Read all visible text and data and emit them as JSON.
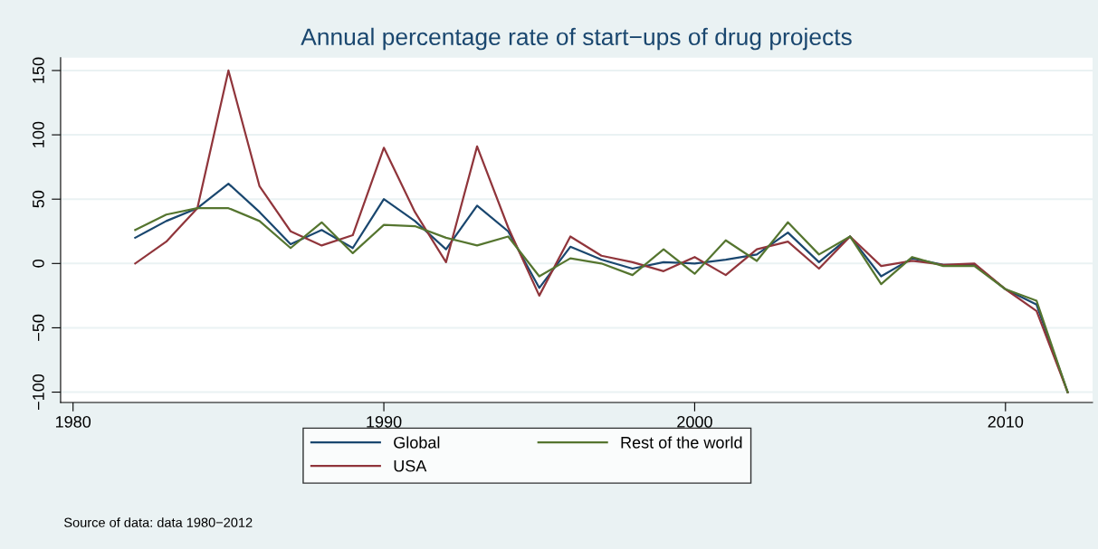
{
  "chart_data": {
    "type": "line",
    "title": "Annual percentage rate of start−ups of drug projects",
    "x": [
      1982,
      1983,
      1984,
      1985,
      1986,
      1987,
      1988,
      1989,
      1990,
      1991,
      1992,
      1993,
      1994,
      1995,
      1996,
      1997,
      1998,
      1999,
      2000,
      2001,
      2002,
      2003,
      2004,
      2005,
      2006,
      2007,
      2008,
      2009,
      2010,
      2011,
      2012
    ],
    "series": [
      {
        "name": "Global",
        "color": "#1a476f",
        "values": [
          20,
          33,
          43,
          62,
          40,
          15,
          26,
          12,
          50,
          33,
          11,
          45,
          25,
          -19,
          13,
          3,
          -4,
          1,
          0,
          3,
          7,
          24,
          1,
          21,
          -10,
          4,
          -1,
          -1,
          -20,
          -32,
          -100
        ]
      },
      {
        "name": "USA",
        "color": "#90353b",
        "values": [
          0,
          17,
          43,
          150,
          60,
          25,
          14,
          22,
          90,
          40,
          1,
          91,
          28,
          -25,
          21,
          6,
          1,
          -6,
          5,
          -9,
          11,
          17,
          -4,
          21,
          -2,
          2,
          -1,
          0,
          -20,
          -37,
          -100
        ]
      },
      {
        "name": "Rest of the world",
        "color": "#55752f",
        "values": [
          26,
          38,
          43,
          43,
          33,
          12,
          32,
          8,
          30,
          29,
          20,
          14,
          21,
          -10,
          4,
          0,
          -9,
          11,
          -8,
          18,
          2,
          32,
          7,
          21,
          -16,
          5,
          -2,
          -2,
          -20,
          -29,
          -100
        ]
      }
    ],
    "xlim": [
      1979.6,
      2012.8
    ],
    "xticks": [
      1980,
      1990,
      2000,
      2010
    ],
    "ylim": [
      -108,
      160
    ],
    "yticks": [
      {
        "value": -100,
        "label": "−100"
      },
      {
        "value": -50,
        "label": "−50"
      },
      0,
      50,
      100,
      150
    ],
    "grid": "y",
    "legend": "bottom",
    "marker": "none",
    "line_style": "solid",
    "annotations": [
      "Source of data: data 1980−2012"
    ]
  }
}
